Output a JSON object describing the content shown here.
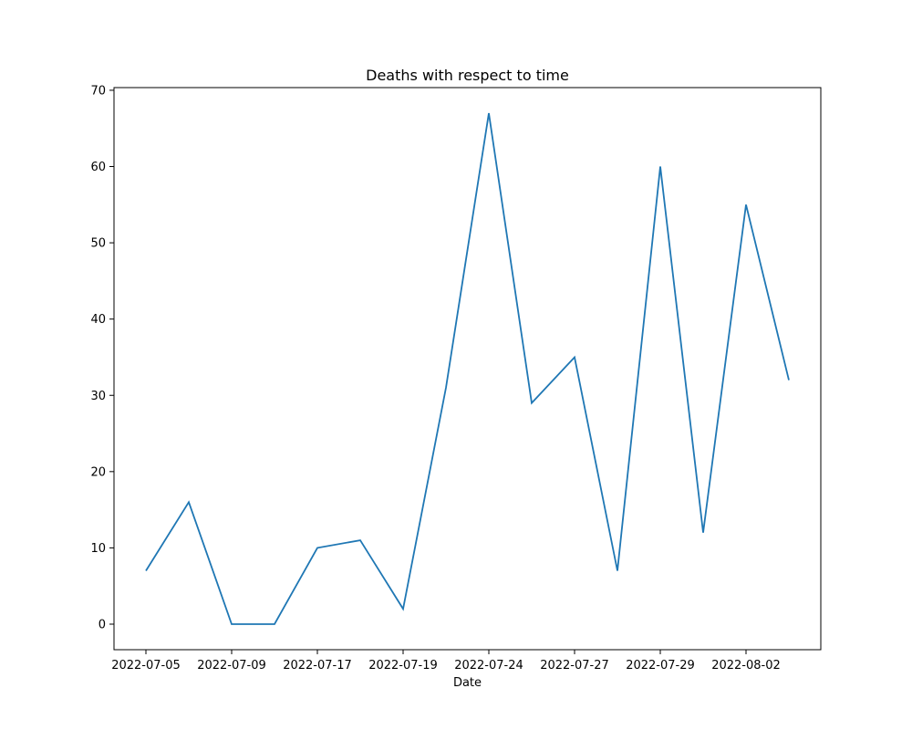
{
  "chart_data": {
    "type": "line",
    "title": "Deaths with respect to time",
    "xlabel": "Date",
    "ylabel": "",
    "x_tick_labels": [
      "2022-07-05",
      "2022-07-09",
      "2022-07-17",
      "2022-07-19",
      "2022-07-24",
      "2022-07-27",
      "2022-07-29",
      "2022-08-02"
    ],
    "y_ticks": [
      0,
      10,
      20,
      30,
      40,
      50,
      60,
      70
    ],
    "ylim": [
      -3.35,
      70.35
    ],
    "grid": false,
    "legend": "none",
    "series": [
      {
        "color": "#1f77b4",
        "values": [
          7,
          16,
          0,
          0,
          10,
          11,
          2,
          31,
          67,
          29,
          35,
          7,
          60,
          12,
          55,
          32
        ]
      }
    ]
  }
}
